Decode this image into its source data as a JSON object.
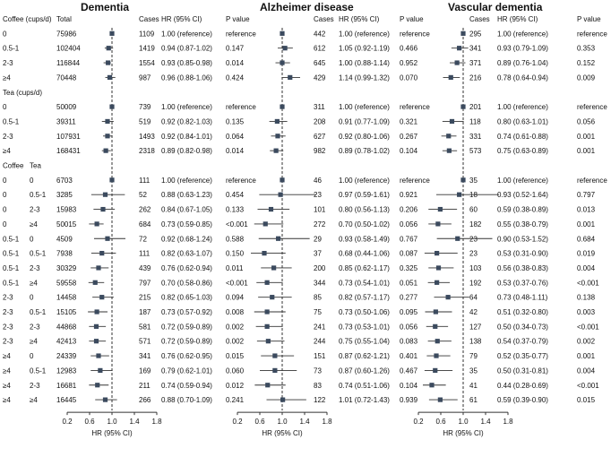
{
  "chart_data": {
    "type": "forest",
    "x_axis": {
      "label": "HR (95% CI)",
      "range": [
        0.2,
        1.8
      ],
      "ticks": [
        "0.2",
        "0.6",
        "1.0",
        "1.4",
        "1.8"
      ],
      "reference_line": 1.0
    },
    "left_headers": {
      "total": "Total",
      "cases": "Cases",
      "hr": "HR (95% CI)",
      "p": "P value"
    },
    "panels": [
      {
        "title": "Dementia",
        "cases_header": "Cases",
        "hr_header": "HR (95% CI)",
        "p_header": "P value"
      },
      {
        "title": "Alzheimer disease",
        "cases_header": "Cases",
        "hr_header": "HR (95% CI)",
        "p_header": "P value"
      },
      {
        "title": "Vascular dementia",
        "cases_header": "Cases",
        "hr_header": "HR (95% CI)",
        "p_header": "P value"
      }
    ],
    "rows": [
      {
        "kind": "header",
        "label": "Coffee (cups/d)",
        "label2": "",
        "total": "Total"
      },
      {
        "kind": "data",
        "label": "0",
        "label2": "",
        "total": "75986",
        "values": [
          {
            "cases": "1109",
            "text": "1.00 (reference)",
            "p": "reference",
            "hr": 1.0,
            "lo": 1.0,
            "hi": 1.0
          },
          {
            "cases": "442",
            "text": "1.00 (reference)",
            "p": "reference",
            "hr": 1.0,
            "lo": 1.0,
            "hi": 1.0
          },
          {
            "cases": "295",
            "text": "1.00 (reference)",
            "p": "reference",
            "hr": 1.0,
            "lo": 1.0,
            "hi": 1.0
          }
        ]
      },
      {
        "kind": "data",
        "label": "0.5-1",
        "label2": "",
        "total": "102404",
        "values": [
          {
            "cases": "1419",
            "text": "0.94 (0.87-1.02)",
            "p": "0.147",
            "hr": 0.94,
            "lo": 0.87,
            "hi": 1.02
          },
          {
            "cases": "612",
            "text": "1.05 (0.92-1.19)",
            "p": "0.466",
            "hr": 1.05,
            "lo": 0.92,
            "hi": 1.19
          },
          {
            "cases": "341",
            "text": "0.93 (0.79-1.09)",
            "p": "0.353",
            "hr": 0.93,
            "lo": 0.79,
            "hi": 1.09
          }
        ]
      },
      {
        "kind": "data",
        "label": "2-3",
        "label2": "",
        "total": "116844",
        "values": [
          {
            "cases": "1554",
            "text": "0.93 (0.85-0.98)",
            "p": "0.014",
            "hr": 0.93,
            "lo": 0.85,
            "hi": 0.98
          },
          {
            "cases": "645",
            "text": "1.00 (0.88-1.14)",
            "p": "0.952",
            "hr": 1.0,
            "lo": 0.88,
            "hi": 1.14
          },
          {
            "cases": "371",
            "text": "0.89 (0.76-1.04)",
            "p": "0.152",
            "hr": 0.89,
            "lo": 0.76,
            "hi": 1.04
          }
        ]
      },
      {
        "kind": "data",
        "label": "≥4",
        "label2": "",
        "total": "70448",
        "values": [
          {
            "cases": "987",
            "text": "0.96 (0.88-1.06)",
            "p": "0.424",
            "hr": 0.96,
            "lo": 0.88,
            "hi": 1.06
          },
          {
            "cases": "429",
            "text": "1.14 (0.99-1.32)",
            "p": "0.070",
            "hr": 1.14,
            "lo": 0.99,
            "hi": 1.32
          },
          {
            "cases": "216",
            "text": "0.78 (0.64-0.94)",
            "p": "0.009",
            "hr": 0.78,
            "lo": 0.64,
            "hi": 0.94
          }
        ]
      },
      {
        "kind": "header",
        "label": "Tea (cups/d)",
        "label2": "",
        "total": ""
      },
      {
        "kind": "data",
        "label": "0",
        "label2": "",
        "total": "50009",
        "values": [
          {
            "cases": "739",
            "text": "1.00 (reference)",
            "p": "reference",
            "hr": 1.0,
            "lo": 1.0,
            "hi": 1.0
          },
          {
            "cases": "311",
            "text": "1.00 (reference)",
            "p": "reference",
            "hr": 1.0,
            "lo": 1.0,
            "hi": 1.0
          },
          {
            "cases": "201",
            "text": "1.00 (reference)",
            "p": "reference",
            "hr": 1.0,
            "lo": 1.0,
            "hi": 1.0
          }
        ]
      },
      {
        "kind": "data",
        "label": "0.5-1",
        "label2": "",
        "total": "39311",
        "values": [
          {
            "cases": "519",
            "text": "0.92 (0.82-1.03)",
            "p": "0.135",
            "hr": 0.92,
            "lo": 0.82,
            "hi": 1.03
          },
          {
            "cases": "208",
            "text": "0.91 (0.77-1.09)",
            "p": "0.321",
            "hr": 0.91,
            "lo": 0.77,
            "hi": 1.09
          },
          {
            "cases": "118",
            "text": "0.80 (0.63-1.01)",
            "p": "0.056",
            "hr": 0.8,
            "lo": 0.63,
            "hi": 1.01
          }
        ]
      },
      {
        "kind": "data",
        "label": "2-3",
        "label2": "",
        "total": "107931",
        "values": [
          {
            "cases": "1493",
            "text": "0.92 (0.84-1.01)",
            "p": "0.064",
            "hr": 0.92,
            "lo": 0.84,
            "hi": 1.01
          },
          {
            "cases": "627",
            "text": "0.92 (0.80-1.06)",
            "p": "0.267",
            "hr": 0.92,
            "lo": 0.8,
            "hi": 1.06
          },
          {
            "cases": "331",
            "text": "0.74 (0.61-0.88)",
            "p": "0.001",
            "hr": 0.74,
            "lo": 0.61,
            "hi": 0.88
          }
        ]
      },
      {
        "kind": "data",
        "label": "≥4",
        "label2": "",
        "total": "168431",
        "values": [
          {
            "cases": "2318",
            "text": "0.89 (0.82-0.98)",
            "p": "0.014",
            "hr": 0.89,
            "lo": 0.82,
            "hi": 0.98
          },
          {
            "cases": "982",
            "text": "0.89 (0.78-1.02)",
            "p": "0.104",
            "hr": 0.89,
            "lo": 0.78,
            "hi": 1.02
          },
          {
            "cases": "573",
            "text": "0.75 (0.63-0.89)",
            "p": "0.001",
            "hr": 0.75,
            "lo": 0.63,
            "hi": 0.89
          }
        ]
      },
      {
        "kind": "header",
        "label": "Coffee",
        "label2": "Tea",
        "total": ""
      },
      {
        "kind": "data",
        "label": "0",
        "label2": "0",
        "total": "6703",
        "values": [
          {
            "cases": "111",
            "text": "1.00 (reference)",
            "p": "reference",
            "hr": 1.0,
            "lo": 1.0,
            "hi": 1.0
          },
          {
            "cases": "46",
            "text": "1.00 (reference)",
            "p": "reference",
            "hr": 1.0,
            "lo": 1.0,
            "hi": 1.0
          },
          {
            "cases": "35",
            "text": "1.00 (reference)",
            "p": "reference",
            "hr": 1.0,
            "lo": 1.0,
            "hi": 1.0
          }
        ]
      },
      {
        "kind": "data",
        "label": "0",
        "label2": "0.5-1",
        "total": "3285",
        "values": [
          {
            "cases": "52",
            "text": "0.88 (0.63-1.23)",
            "p": "0.454",
            "hr": 0.88,
            "lo": 0.63,
            "hi": 1.23
          },
          {
            "cases": "23",
            "text": "0.97 (0.59-1.61)",
            "p": "0.921",
            "hr": 0.97,
            "lo": 0.59,
            "hi": 1.61
          },
          {
            "cases": "18",
            "text": "0.93 (0.52-1.64)",
            "p": "0.797",
            "hr": 0.93,
            "lo": 0.52,
            "hi": 1.64
          }
        ]
      },
      {
        "kind": "data",
        "label": "0",
        "label2": "2-3",
        "total": "15983",
        "values": [
          {
            "cases": "262",
            "text": "0.84 (0.67-1.05)",
            "p": "0.133",
            "hr": 0.84,
            "lo": 0.67,
            "hi": 1.05
          },
          {
            "cases": "101",
            "text": "0.80 (0.56-1.13)",
            "p": "0.206",
            "hr": 0.8,
            "lo": 0.56,
            "hi": 1.13
          },
          {
            "cases": "60",
            "text": "0.59 (0.38-0.89)",
            "p": "0.013",
            "hr": 0.59,
            "lo": 0.38,
            "hi": 0.89
          }
        ]
      },
      {
        "kind": "data",
        "label": "0",
        "label2": "≥4",
        "total": "50015",
        "values": [
          {
            "cases": "684",
            "text": "0.73 (0.59-0.85)",
            "p": "<0.001",
            "hr": 0.73,
            "lo": 0.59,
            "hi": 0.85
          },
          {
            "cases": "272",
            "text": "0.70 (0.50-1.02)",
            "p": "0.056",
            "hr": 0.7,
            "lo": 0.5,
            "hi": 1.02
          },
          {
            "cases": "182",
            "text": "0.55 (0.38-0.79)",
            "p": "0.001",
            "hr": 0.55,
            "lo": 0.38,
            "hi": 0.79
          }
        ]
      },
      {
        "kind": "data",
        "label": "0.5-1",
        "label2": "0",
        "total": "4509",
        "values": [
          {
            "cases": "72",
            "text": "0.92 (0.68-1.24)",
            "p": "0.588",
            "hr": 0.92,
            "lo": 0.68,
            "hi": 1.24
          },
          {
            "cases": "29",
            "text": "0.93 (0.58-1.49)",
            "p": "0.767",
            "hr": 0.93,
            "lo": 0.58,
            "hi": 1.49
          },
          {
            "cases": "23",
            "text": "0.90 (0.53-1.52)",
            "p": "0.684",
            "hr": 0.9,
            "lo": 0.53,
            "hi": 1.52
          }
        ]
      },
      {
        "kind": "data",
        "label": "0.5-1",
        "label2": "0.5-1",
        "total": "7938",
        "values": [
          {
            "cases": "111",
            "text": "0.82 (0.63-1.07)",
            "p": "0.150",
            "hr": 0.82,
            "lo": 0.63,
            "hi": 1.07
          },
          {
            "cases": "37",
            "text": "0.68 (0.44-1.06)",
            "p": "0.087",
            "hr": 0.68,
            "lo": 0.44,
            "hi": 1.06
          },
          {
            "cases": "23",
            "text": "0.53 (0.31-0.90)",
            "p": "0.019",
            "hr": 0.53,
            "lo": 0.31,
            "hi": 0.9
          }
        ]
      },
      {
        "kind": "data",
        "label": "0.5-1",
        "label2": "2-3",
        "total": "30329",
        "values": [
          {
            "cases": "439",
            "text": "0.76 (0.62-0.94)",
            "p": "0.011",
            "hr": 0.76,
            "lo": 0.62,
            "hi": 0.94
          },
          {
            "cases": "200",
            "text": "0.85 (0.62-1.17)",
            "p": "0.325",
            "hr": 0.85,
            "lo": 0.62,
            "hi": 1.17
          },
          {
            "cases": "103",
            "text": "0.56 (0.38-0.83)",
            "p": "0.004",
            "hr": 0.56,
            "lo": 0.38,
            "hi": 0.83
          }
        ]
      },
      {
        "kind": "data",
        "label": "0.5-1",
        "label2": "≥4",
        "total": "59558",
        "values": [
          {
            "cases": "797",
            "text": "0.70 (0.58-0.86)",
            "p": "<0.001",
            "hr": 0.7,
            "lo": 0.58,
            "hi": 0.86
          },
          {
            "cases": "344",
            "text": "0.73 (0.54-1.01)",
            "p": "0.051",
            "hr": 0.73,
            "lo": 0.54,
            "hi": 1.01
          },
          {
            "cases": "192",
            "text": "0.53 (0.37-0.76)",
            "p": "<0.001",
            "hr": 0.53,
            "lo": 0.37,
            "hi": 0.76
          }
        ]
      },
      {
        "kind": "data",
        "label": "2-3",
        "label2": "0",
        "total": "14458",
        "values": [
          {
            "cases": "215",
            "text": "0.82 (0.65-1.03)",
            "p": "0.094",
            "hr": 0.82,
            "lo": 0.65,
            "hi": 1.03
          },
          {
            "cases": "85",
            "text": "0.82 (0.57-1.17)",
            "p": "0.277",
            "hr": 0.82,
            "lo": 0.57,
            "hi": 1.17
          },
          {
            "cases": "64",
            "text": "0.73 (0.48-1.11)",
            "p": "0.138",
            "hr": 0.73,
            "lo": 0.48,
            "hi": 1.11
          }
        ]
      },
      {
        "kind": "data",
        "label": "2-3",
        "label2": "0.5-1",
        "total": "15105",
        "values": [
          {
            "cases": "187",
            "text": "0.73 (0.57-0.92)",
            "p": "0.008",
            "hr": 0.73,
            "lo": 0.57,
            "hi": 0.92
          },
          {
            "cases": "75",
            "text": "0.73 (0.50-1.06)",
            "p": "0.095",
            "hr": 0.73,
            "lo": 0.5,
            "hi": 1.06
          },
          {
            "cases": "42",
            "text": "0.51 (0.32-0.80)",
            "p": "0.003",
            "hr": 0.51,
            "lo": 0.32,
            "hi": 0.8
          }
        ]
      },
      {
        "kind": "data",
        "label": "2-3",
        "label2": "2-3",
        "total": "44868",
        "values": [
          {
            "cases": "581",
            "text": "0.72 (0.59-0.89)",
            "p": "0.002",
            "hr": 0.72,
            "lo": 0.59,
            "hi": 0.89
          },
          {
            "cases": "241",
            "text": "0.73 (0.53-1.01)",
            "p": "0.056",
            "hr": 0.73,
            "lo": 0.53,
            "hi": 1.01
          },
          {
            "cases": "127",
            "text": "0.50 (0.34-0.73)",
            "p": "<0.001",
            "hr": 0.5,
            "lo": 0.34,
            "hi": 0.73
          }
        ]
      },
      {
        "kind": "data",
        "label": "2-3",
        "label2": "≥4",
        "total": "42413",
        "values": [
          {
            "cases": "571",
            "text": "0.72 (0.59-0.89)",
            "p": "0.002",
            "hr": 0.72,
            "lo": 0.59,
            "hi": 0.89
          },
          {
            "cases": "244",
            "text": "0.75 (0.55-1.04)",
            "p": "0.083",
            "hr": 0.75,
            "lo": 0.55,
            "hi": 1.04
          },
          {
            "cases": "138",
            "text": "0.54 (0.37-0.79)",
            "p": "0.002",
            "hr": 0.54,
            "lo": 0.37,
            "hi": 0.79
          }
        ]
      },
      {
        "kind": "data",
        "label": "≥4",
        "label2": "0",
        "total": "24339",
        "values": [
          {
            "cases": "341",
            "text": "0.76 (0.62-0.95)",
            "p": "0.015",
            "hr": 0.76,
            "lo": 0.62,
            "hi": 0.95
          },
          {
            "cases": "151",
            "text": "0.87 (0.62-1.21)",
            "p": "0.401",
            "hr": 0.87,
            "lo": 0.62,
            "hi": 1.21
          },
          {
            "cases": "79",
            "text": "0.52 (0.35-0.77)",
            "p": "0.001",
            "hr": 0.52,
            "lo": 0.35,
            "hi": 0.77
          }
        ]
      },
      {
        "kind": "data",
        "label": "≥4",
        "label2": "0.5-1",
        "total": "12983",
        "values": [
          {
            "cases": "169",
            "text": "0.79 (0.62-1.01)",
            "p": "0.060",
            "hr": 0.79,
            "lo": 0.62,
            "hi": 1.01
          },
          {
            "cases": "73",
            "text": "0.87 (0.60-1.26)",
            "p": "0.467",
            "hr": 0.87,
            "lo": 0.6,
            "hi": 1.26
          },
          {
            "cases": "35",
            "text": "0.50 (0.31-0.81)",
            "p": "0.004",
            "hr": 0.5,
            "lo": 0.31,
            "hi": 0.81
          }
        ]
      },
      {
        "kind": "data",
        "label": "≥4",
        "label2": "2-3",
        "total": "16681",
        "values": [
          {
            "cases": "211",
            "text": "0.74 (0.59-0.94)",
            "p": "0.012",
            "hr": 0.74,
            "lo": 0.59,
            "hi": 0.94
          },
          {
            "cases": "83",
            "text": "0.74 (0.51-1.06)",
            "p": "0.104",
            "hr": 0.74,
            "lo": 0.51,
            "hi": 1.06
          },
          {
            "cases": "41",
            "text": "0.44 (0.28-0.69)",
            "p": "<0.001",
            "hr": 0.44,
            "lo": 0.28,
            "hi": 0.69
          }
        ]
      },
      {
        "kind": "data",
        "label": "≥4",
        "label2": "≥4",
        "total": "16445",
        "values": [
          {
            "cases": "266",
            "text": "0.88 (0.70-1.09)",
            "p": "0.241",
            "hr": 0.88,
            "lo": 0.7,
            "hi": 1.09
          },
          {
            "cases": "122",
            "text": "1.01 (0.72-1.43)",
            "p": "0.939",
            "hr": 1.01,
            "lo": 0.72,
            "hi": 1.43
          },
          {
            "cases": "61",
            "text": "0.59 (0.39-0.90)",
            "p": "0.015",
            "hr": 0.59,
            "lo": 0.39,
            "hi": 0.9
          }
        ]
      }
    ]
  },
  "colors": {
    "marker": "#3b4a5e",
    "line": "#333333",
    "text": "#111111"
  }
}
